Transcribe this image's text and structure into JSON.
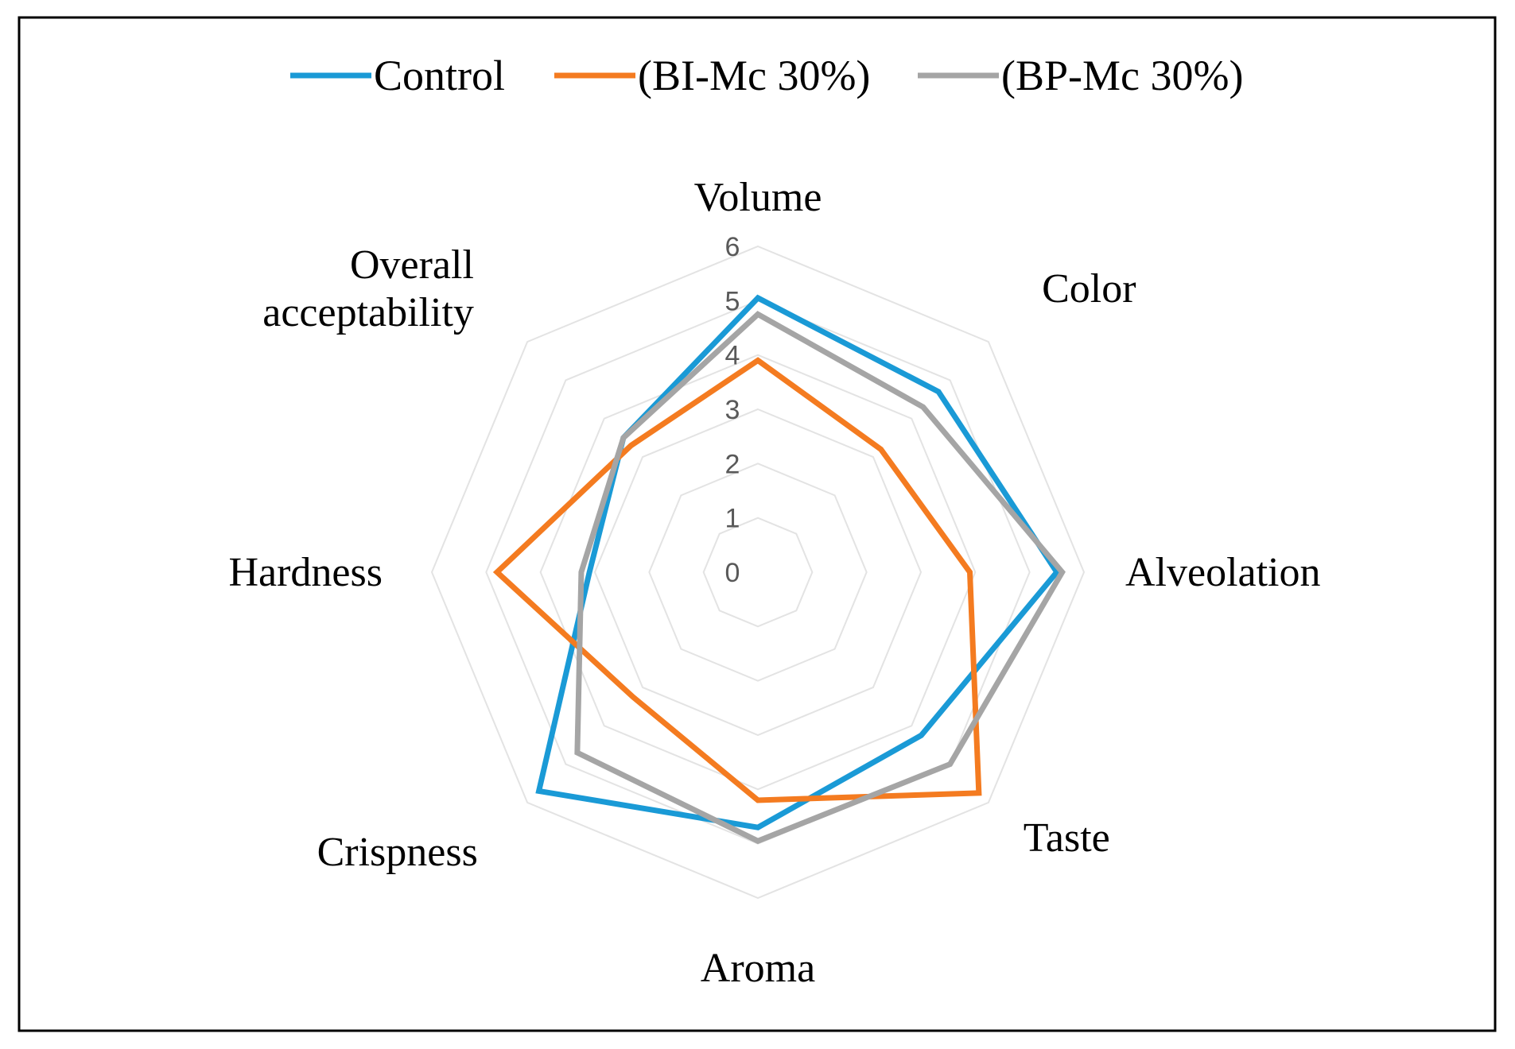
{
  "chart_data": {
    "type": "radar",
    "title": "",
    "categories": [
      "Volume",
      "Color",
      "Alveolation",
      "Taste",
      "Aroma",
      "Crispness",
      "Hardness",
      "Overall acceptability"
    ],
    "category_lines": [
      [
        "Volume"
      ],
      [
        "Color"
      ],
      [
        "Alveolation"
      ],
      [
        "Taste"
      ],
      [
        "Aroma"
      ],
      [
        "Crispness"
      ],
      [
        "Hardness"
      ],
      [
        "Overall",
        "acceptability"
      ]
    ],
    "series": [
      {
        "name": "Control",
        "color": "#1a9ad6",
        "values": [
          5.05,
          4.7,
          5.5,
          4.25,
          4.7,
          5.7,
          3.1,
          3.5
        ]
      },
      {
        "name": "(BI-Mc 30%)",
        "color": "#f47b20",
        "values": [
          3.9,
          3.2,
          3.9,
          5.75,
          4.2,
          3.25,
          4.8,
          3.3
        ]
      },
      {
        "name": "(BP-Mc 30%)",
        "color": "#a5a5a5",
        "values": [
          4.75,
          4.3,
          5.6,
          5.0,
          4.95,
          4.7,
          3.25,
          3.5
        ]
      }
    ],
    "rlim": [
      0,
      6
    ],
    "ticks": [
      0,
      1,
      2,
      3,
      4,
      5,
      6
    ],
    "grid": true,
    "legend_position": "top"
  }
}
